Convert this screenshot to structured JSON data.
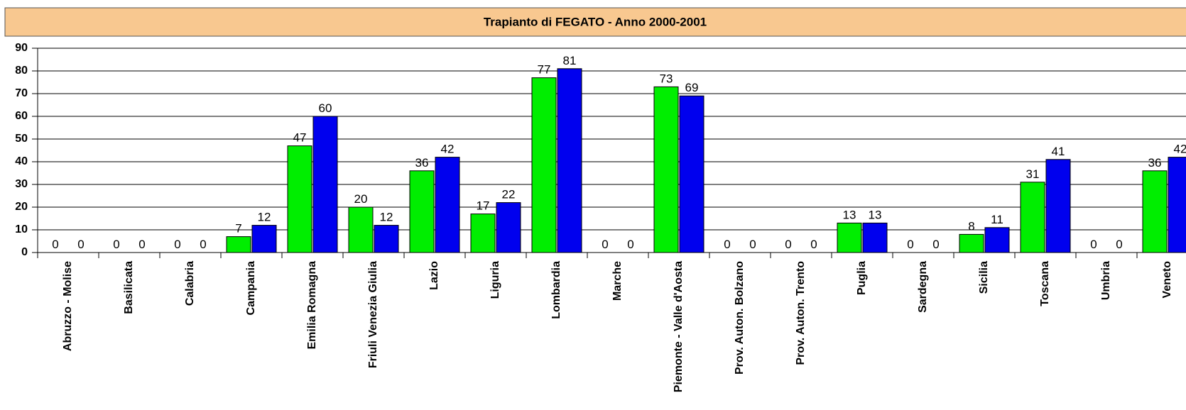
{
  "chart_data": {
    "type": "bar",
    "title": "Trapianto di FEGATO - Anno 2000-2001",
    "categories": [
      "Abruzzo - Molise",
      "Basilicata",
      "Calabria",
      "Campania",
      "Emilia Romagna",
      "Friuli Venezia Giulia",
      "Lazio",
      "Liguria",
      "Lombardia",
      "Marche",
      "Piemonte - Valle d'Aosta",
      "Prov. Auton. Bolzano",
      "Prov. Auton. Trento",
      "Puglia",
      "Sardegna",
      "Sicilia",
      "Toscana",
      "Umbria",
      "Veneto"
    ],
    "series": [
      {
        "color": "#00ee00",
        "values": [
          0,
          0,
          0,
          7,
          47,
          20,
          36,
          17,
          77,
          0,
          73,
          0,
          0,
          13,
          0,
          8,
          31,
          0,
          36
        ]
      },
      {
        "color": "#0000ee",
        "values": [
          0,
          0,
          0,
          12,
          60,
          12,
          42,
          22,
          81,
          0,
          69,
          0,
          0,
          13,
          0,
          11,
          41,
          0,
          42
        ]
      }
    ],
    "ylim": [
      0,
      90
    ],
    "yticks": [
      0,
      10,
      20,
      30,
      40,
      50,
      60,
      70,
      80,
      90
    ],
    "grid": true
  }
}
